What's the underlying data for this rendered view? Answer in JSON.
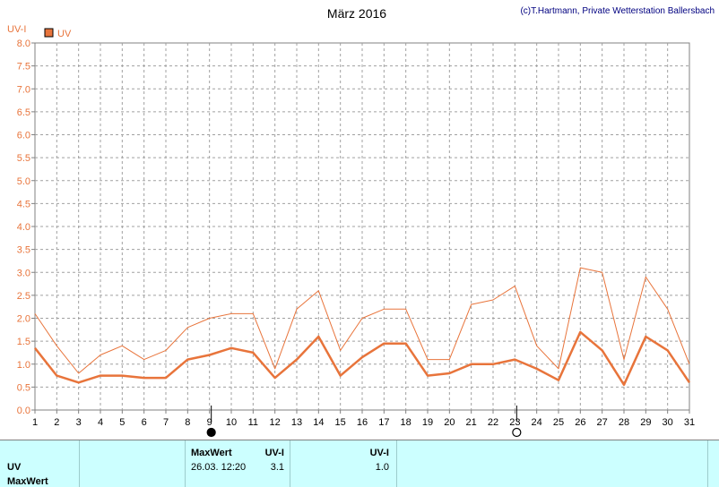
{
  "chart_data": {
    "type": "line",
    "title": "März 2016",
    "credit": "(c)T.Hartmann, Private Wetterstation Ballersbach",
    "ylabel": "UV-I",
    "legend": "UV",
    "legend_position": "top-left",
    "grid": true,
    "ylim": [
      0,
      8
    ],
    "yticks": [
      "0.0",
      "0.5",
      "1.0",
      "1.5",
      "2.0",
      "2.5",
      "3.0",
      "3.5",
      "4.0",
      "4.5",
      "5.0",
      "5.5",
      "6.0",
      "6.5",
      "7.0",
      "7.5",
      "8.0"
    ],
    "x": [
      1,
      2,
      3,
      4,
      5,
      6,
      7,
      8,
      9,
      10,
      11,
      12,
      13,
      14,
      15,
      16,
      17,
      18,
      19,
      20,
      21,
      22,
      23,
      24,
      25,
      26,
      27,
      28,
      29,
      30,
      31
    ],
    "series": [
      {
        "values": [
          2.1,
          1.4,
          0.8,
          1.2,
          1.4,
          1.1,
          1.3,
          1.8,
          2.0,
          2.1,
          2.1,
          0.9,
          2.2,
          2.6,
          1.3,
          2.0,
          2.2,
          2.2,
          1.1,
          1.1,
          2.3,
          2.4,
          2.7,
          1.4,
          0.9,
          3.1,
          3.0,
          1.1,
          2.9,
          2.2,
          1.0
        ],
        "color": "#e8743b",
        "width": 1
      },
      {
        "values": [
          1.35,
          0.75,
          0.6,
          0.75,
          0.75,
          0.7,
          0.7,
          1.1,
          1.2,
          1.35,
          1.25,
          0.7,
          1.1,
          1.6,
          0.75,
          1.15,
          1.45,
          1.45,
          0.75,
          0.8,
          1.0,
          1.0,
          1.1,
          0.9,
          0.65,
          1.7,
          1.3,
          0.55,
          1.6,
          1.3,
          0.6
        ],
        "color": "#e8743b",
        "width": 2.5
      }
    ],
    "moon_phases": [
      {
        "day": 9,
        "phase": "new-moon"
      },
      {
        "day": 23,
        "phase": "full-moon"
      }
    ]
  },
  "footer": {
    "row1_label": "UV",
    "row2_label": "MaxWert",
    "max_header": "MaxWert",
    "unit_header": "UV-I",
    "unit_header2": "UV-I",
    "max_datetime": "26.03.  12:20",
    "max_value": "3.1",
    "value2": "1.0"
  }
}
